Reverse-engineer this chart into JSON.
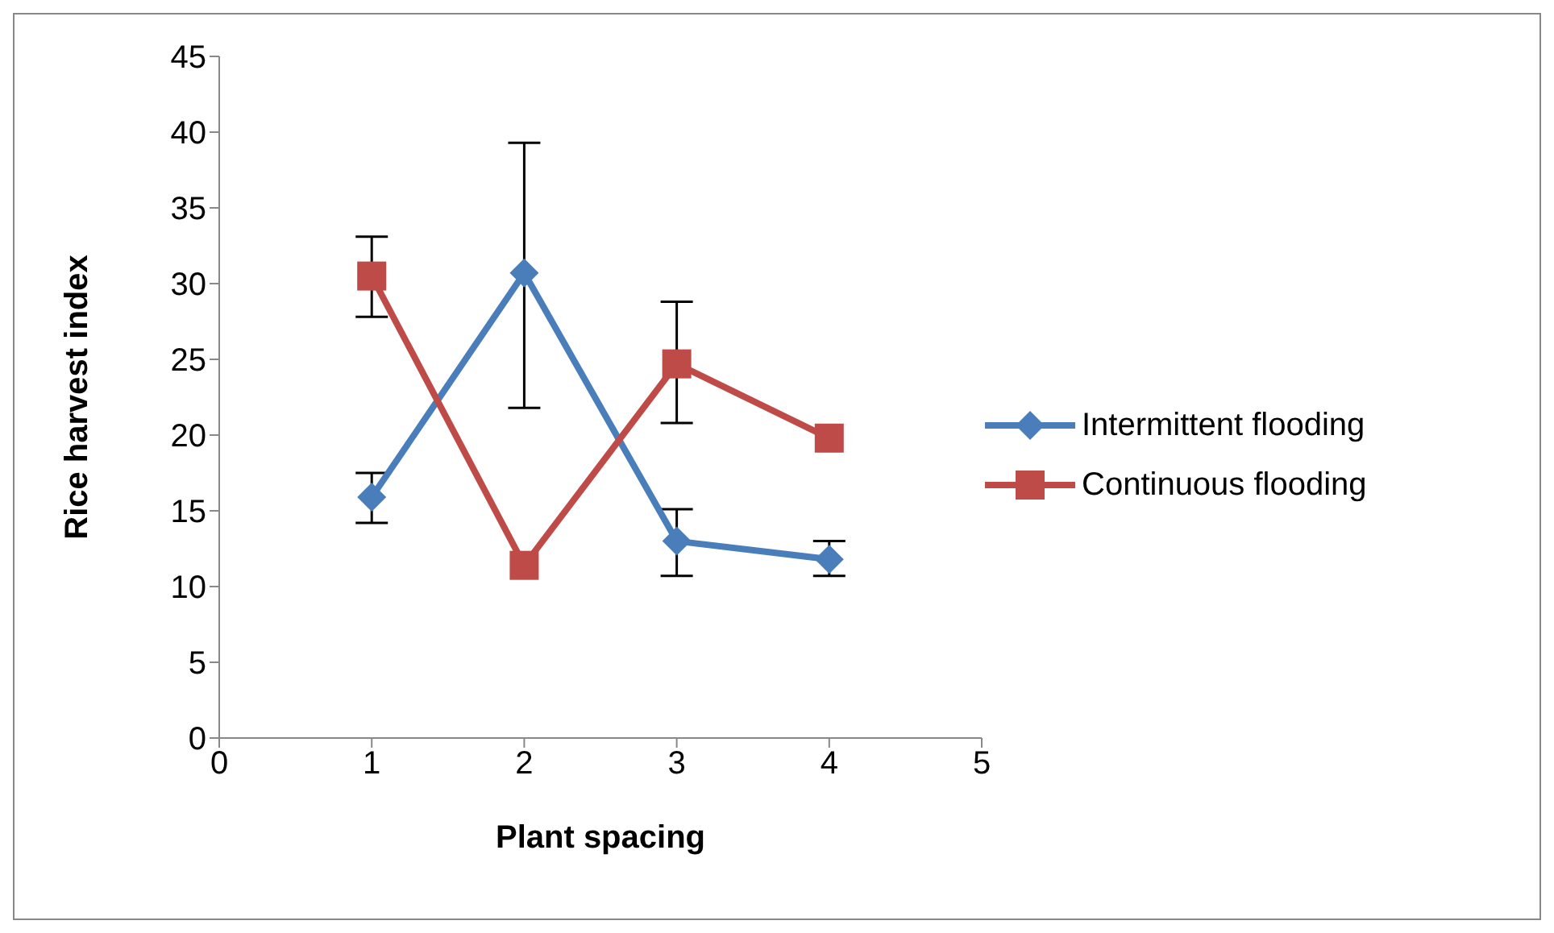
{
  "chart_data": {
    "type": "line",
    "xlabel": "Plant spacing",
    "ylabel": "Rice harvest index",
    "x": [
      1,
      2,
      3,
      4
    ],
    "xlim": [
      0,
      5
    ],
    "xticks": [
      0,
      1,
      2,
      3,
      4,
      5
    ],
    "ylim": [
      0,
      45
    ],
    "yticks": [
      0,
      5,
      10,
      15,
      20,
      25,
      30,
      35,
      40,
      45
    ],
    "grid": false,
    "legend": "right",
    "line_style": "solid",
    "series": [
      {
        "name": "Intermittent flooding",
        "color": "#4a7ebb",
        "marker": "diamond",
        "values": [
          15.9,
          30.7,
          13.0,
          11.8
        ],
        "errors": [
          [
            14.2,
            17.5
          ],
          [
            21.8,
            39.3
          ],
          [
            10.7,
            15.1
          ],
          [
            10.7,
            13.0
          ]
        ]
      },
      {
        "name": "Continuous flooding",
        "color": "#be4b48",
        "marker": "square",
        "values": [
          30.5,
          11.4,
          24.7,
          19.8
        ],
        "errors": [
          [
            27.8,
            33.1
          ],
          null,
          [
            20.8,
            28.8
          ],
          null
        ]
      }
    ]
  }
}
